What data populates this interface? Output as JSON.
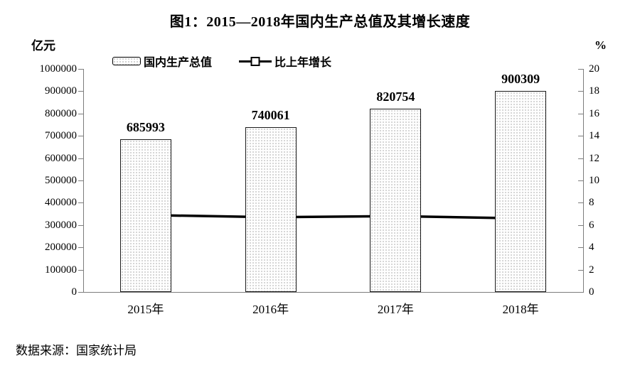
{
  "title": "图1：2015—2018年国内生产总值及其增长速度",
  "source_note": "数据来源：国家统计局",
  "legend": {
    "bar_label": "国内生产总值",
    "line_label": "比上年增长"
  },
  "colors": {
    "ink": "#000000",
    "axis": "#7d7d7d",
    "bar_dot": "#c8c8c8",
    "bar_bg": "#fefefe",
    "line": "#000000",
    "marker_fill": "#ffffff"
  },
  "chart_data": {
    "type": "bar",
    "subtype": "bar+line combo",
    "categories": [
      "2015年",
      "2016年",
      "2017年",
      "2018年"
    ],
    "series": [
      {
        "name": "国内生产总值",
        "type": "bar",
        "axis": "left",
        "values": [
          685993,
          740061,
          820754,
          900309
        ]
      },
      {
        "name": "比上年增长",
        "type": "line",
        "axis": "right",
        "values": [
          6.9,
          6.7,
          6.8,
          6.6
        ]
      }
    ],
    "title": "图1：2015—2018年国内生产总值及其增长速度",
    "left_axis": {
      "label": "亿元",
      "min": 0,
      "max": 1000000,
      "step": 100000,
      "ticks": [
        "1000000",
        "900000",
        "800000",
        "700000",
        "600000",
        "500000",
        "400000",
        "300000",
        "200000",
        "100000",
        "0"
      ]
    },
    "right_axis": {
      "label": "%",
      "min": 0,
      "max": 20,
      "step": 2,
      "ticks": [
        "20",
        "18",
        "16",
        "14",
        "12",
        "10",
        "8",
        "6",
        "4",
        "2",
        "0"
      ]
    },
    "grid": false,
    "legend_position": "top"
  }
}
